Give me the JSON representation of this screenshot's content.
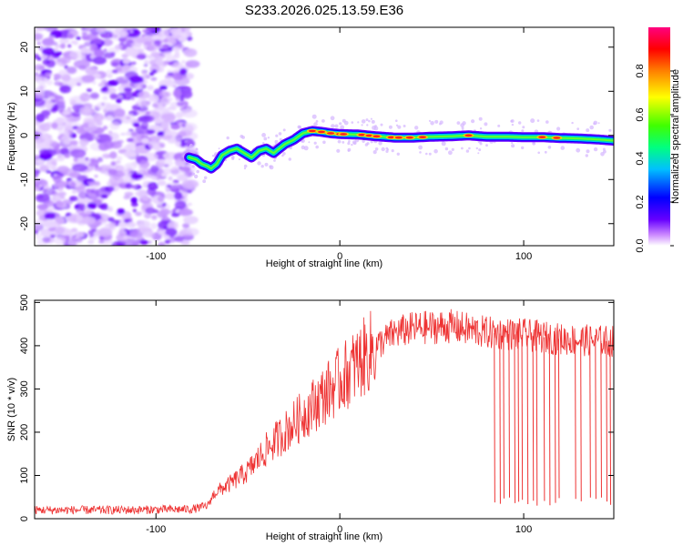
{
  "title": "S233.2026.025.13.59.E36",
  "chart_data": [
    {
      "type": "heatmap",
      "name": "spectrogram",
      "xlabel": "Height of straight line (km)",
      "ylabel": "Frequency (Hz)",
      "xlim": [
        -166,
        149
      ],
      "ylim": [
        -25,
        24.5
      ],
      "xticks": [
        -100,
        0,
        100
      ],
      "yticks": [
        20,
        10,
        0,
        -10,
        -20
      ],
      "noise_region_x": [
        -166,
        -80
      ],
      "ridge": {
        "x": [
          -82,
          -78,
          -75,
          -72,
          -70,
          -67,
          -64,
          -60,
          -56,
          -52,
          -48,
          -44,
          -40,
          -36,
          -30,
          -25,
          -20,
          -15,
          -10,
          -5,
          0,
          10,
          20,
          30,
          40,
          50,
          60,
          70,
          80,
          90,
          100,
          110,
          120,
          130,
          140,
          149
        ],
        "freq": [
          -5,
          -5.5,
          -6.5,
          -7,
          -7.5,
          -6.5,
          -4.5,
          -3.5,
          -3,
          -4,
          -5,
          -3.5,
          -3,
          -4,
          -2,
          -1,
          0.5,
          1,
          0.8,
          0.5,
          0.3,
          0.2,
          -0.2,
          -0.5,
          -0.5,
          -0.3,
          -0.2,
          0,
          -0.3,
          -0.3,
          -0.4,
          -0.4,
          -0.6,
          -0.7,
          -0.9,
          -1.2
        ]
      },
      "colorbar": {
        "label": "Normalized spectral amplitude",
        "ticks": [
          "0.0",
          "0.2",
          "0.4",
          "0.6",
          "0.8"
        ],
        "range": [
          0,
          1
        ],
        "colors": [
          "#ffffff",
          "#cc88ff",
          "#6600ff",
          "#0000ff",
          "#00c0ff",
          "#00ff80",
          "#40ff00",
          "#ffff00",
          "#ff8000",
          "#ff0000",
          "#ff0080"
        ]
      }
    },
    {
      "type": "line",
      "name": "snr",
      "xlabel": "Height of straight line (km)",
      "ylabel": "SNR (10 * v/v)",
      "xlim": [
        -166,
        149
      ],
      "ylim": [
        0,
        505
      ],
      "xticks": [
        -100,
        0,
        100
      ],
      "yticks": [
        0,
        100,
        200,
        300,
        400,
        500
      ],
      "color": "#ee3333",
      "envelope": {
        "x": [
          -166,
          -120,
          -80,
          -72,
          -68,
          -60,
          -50,
          -40,
          -30,
          -20,
          -10,
          0,
          10,
          20,
          30,
          40,
          60,
          80,
          100,
          120,
          149
        ],
        "y": [
          20,
          20,
          22,
          30,
          60,
          80,
          110,
          160,
          200,
          240,
          280,
          320,
          360,
          400,
          430,
          440,
          445,
          430,
          425,
          415,
          410
        ]
      },
      "dropouts": [
        84,
        87,
        89,
        92,
        95,
        97,
        99,
        102,
        105,
        107,
        111,
        114,
        117,
        119,
        128,
        131,
        136,
        139,
        142,
        145,
        147
      ]
    }
  ]
}
